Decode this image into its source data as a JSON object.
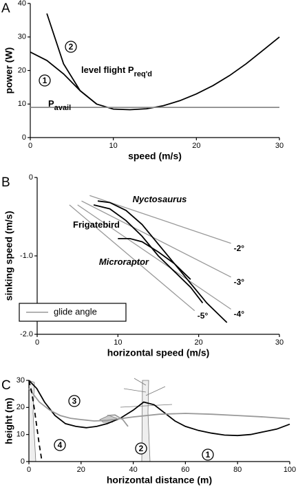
{
  "chart_data": [
    {
      "type": "line",
      "title": "A",
      "xlabel": "speed (m/s)",
      "ylabel": "power (W)",
      "xlim": [
        0,
        30
      ],
      "ylim": [
        0,
        40
      ],
      "xticks": [
        0,
        10,
        20,
        30
      ],
      "yticks": [
        0,
        10,
        20,
        30,
        40
      ],
      "x": [
        0,
        2,
        4,
        6,
        8,
        10,
        12,
        14,
        16,
        18,
        20,
        22,
        24,
        26,
        28,
        30
      ],
      "series": [
        {
          "name": "1",
          "color": "#000000",
          "values": [
            25.5,
            23,
            19,
            14,
            10,
            8.5,
            8.3,
            8.6,
            9.5,
            11,
            13,
            15.5,
            18.5,
            22,
            26,
            30
          ]
        },
        {
          "name": "2",
          "color": "#000000",
          "values": [
            null,
            37,
            22,
            14,
            10,
            null,
            null,
            null,
            null,
            null,
            null,
            null,
            null,
            null,
            null,
            null
          ]
        },
        {
          "name": "P",
          "name_sub": "avail",
          "color": "#888888",
          "values": [
            9,
            9,
            9,
            9,
            9,
            9,
            9,
            9,
            9,
            9,
            9,
            9,
            9,
            9,
            9,
            9
          ]
        }
      ],
      "annotations": [
        {
          "text": "level flight P",
          "sub": "req'd"
        }
      ]
    },
    {
      "type": "line",
      "title": "B",
      "xlabel": "horizontal speed (m/s)",
      "ylabel": "sinking speed (m/s)",
      "xlim": [
        0,
        30
      ],
      "ylim": [
        -2,
        0
      ],
      "xticks": [
        0,
        10,
        20,
        30
      ],
      "yticks": [
        0,
        {
          "value": -1,
          "label": "-1.0"
        },
        {
          "value": -2,
          "label": "-2.0"
        }
      ],
      "series": [
        {
          "name": "Nyctosaurus",
          "color": "#000000",
          "x": [
            7.5,
            9,
            11,
            13,
            15,
            17,
            19,
            21,
            23.5
          ],
          "values": [
            -0.3,
            -0.32,
            -0.42,
            -0.6,
            -0.85,
            -1.1,
            -1.35,
            -1.6,
            -1.85
          ]
        },
        {
          "name": "Frigatebird",
          "color": "#000000",
          "x": [
            7,
            9,
            11,
            13,
            15,
            17,
            19,
            20.5
          ],
          "values": [
            -0.35,
            -0.4,
            -0.55,
            -0.75,
            -1.0,
            -1.2,
            -1.4,
            -1.6
          ]
        },
        {
          "name": "Microraptor",
          "color": "#000000",
          "x": [
            10,
            11.5,
            13,
            15,
            17,
            19
          ],
          "values": [
            -0.78,
            -0.78,
            -0.82,
            -0.95,
            -1.1,
            -1.3
          ]
        }
      ],
      "glide_color": "#999999",
      "glide_lines": [
        {
          "label": "-2°",
          "x": [
            6.5,
            24
          ],
          "values": [
            -0.23,
            -0.84
          ]
        },
        {
          "label": "-3°",
          "x": [
            5.5,
            24
          ],
          "values": [
            -0.3,
            -1.27
          ]
        },
        {
          "label": "-4°",
          "x": [
            5,
            24
          ],
          "values": [
            -0.35,
            -1.68
          ]
        },
        {
          "label": "-5°",
          "x": [
            4,
            19.5
          ],
          "values": [
            -0.35,
            -1.7
          ]
        }
      ],
      "legend": {
        "label": "glide angle",
        "position": "lower left"
      }
    },
    {
      "type": "line",
      "title": "C",
      "xlabel": "horizontal distance (m)",
      "ylabel": "height (m)",
      "xlim": [
        0,
        100
      ],
      "ylim": [
        0,
        30
      ],
      "xticks": [
        0,
        20,
        40,
        60,
        80,
        100
      ],
      "yticks": [
        0,
        10,
        20,
        30
      ],
      "series": [
        {
          "name": "1",
          "color": "#000000",
          "x": [
            0,
            3,
            6,
            10,
            14,
            18,
            22,
            26,
            30,
            35,
            40,
            44,
            48,
            52,
            56,
            60,
            65,
            70,
            75,
            80,
            85,
            90,
            95,
            100
          ],
          "values": [
            30,
            27,
            22,
            17,
            14,
            13,
            12.5,
            13,
            14,
            16,
            19,
            22,
            21,
            18,
            15,
            13,
            11.5,
            10.5,
            9.8,
            9.6,
            10,
            11,
            12,
            13.8
          ]
        },
        {
          "name": "2",
          "color": "#999999",
          "x": [
            30,
            33,
            36,
            38
          ],
          "values": [
            17,
            17.2,
            15.5,
            13
          ]
        },
        {
          "name": "3",
          "color": "#999999",
          "x": [
            0,
            4,
            8,
            12,
            16,
            20,
            25,
            30,
            40,
            50,
            60,
            70,
            80,
            90,
            100
          ],
          "values": [
            27,
            22,
            19,
            17,
            16,
            15.5,
            15,
            15.2,
            16.5,
            17.5,
            17.8,
            17.5,
            17,
            16.5,
            15.8
          ]
        },
        {
          "name": "4",
          "color": "#000000",
          "dashed": true,
          "x": [
            0,
            1,
            2,
            3,
            4,
            5
          ],
          "values": [
            30,
            26,
            20,
            13,
            6,
            0
          ]
        }
      ]
    }
  ]
}
